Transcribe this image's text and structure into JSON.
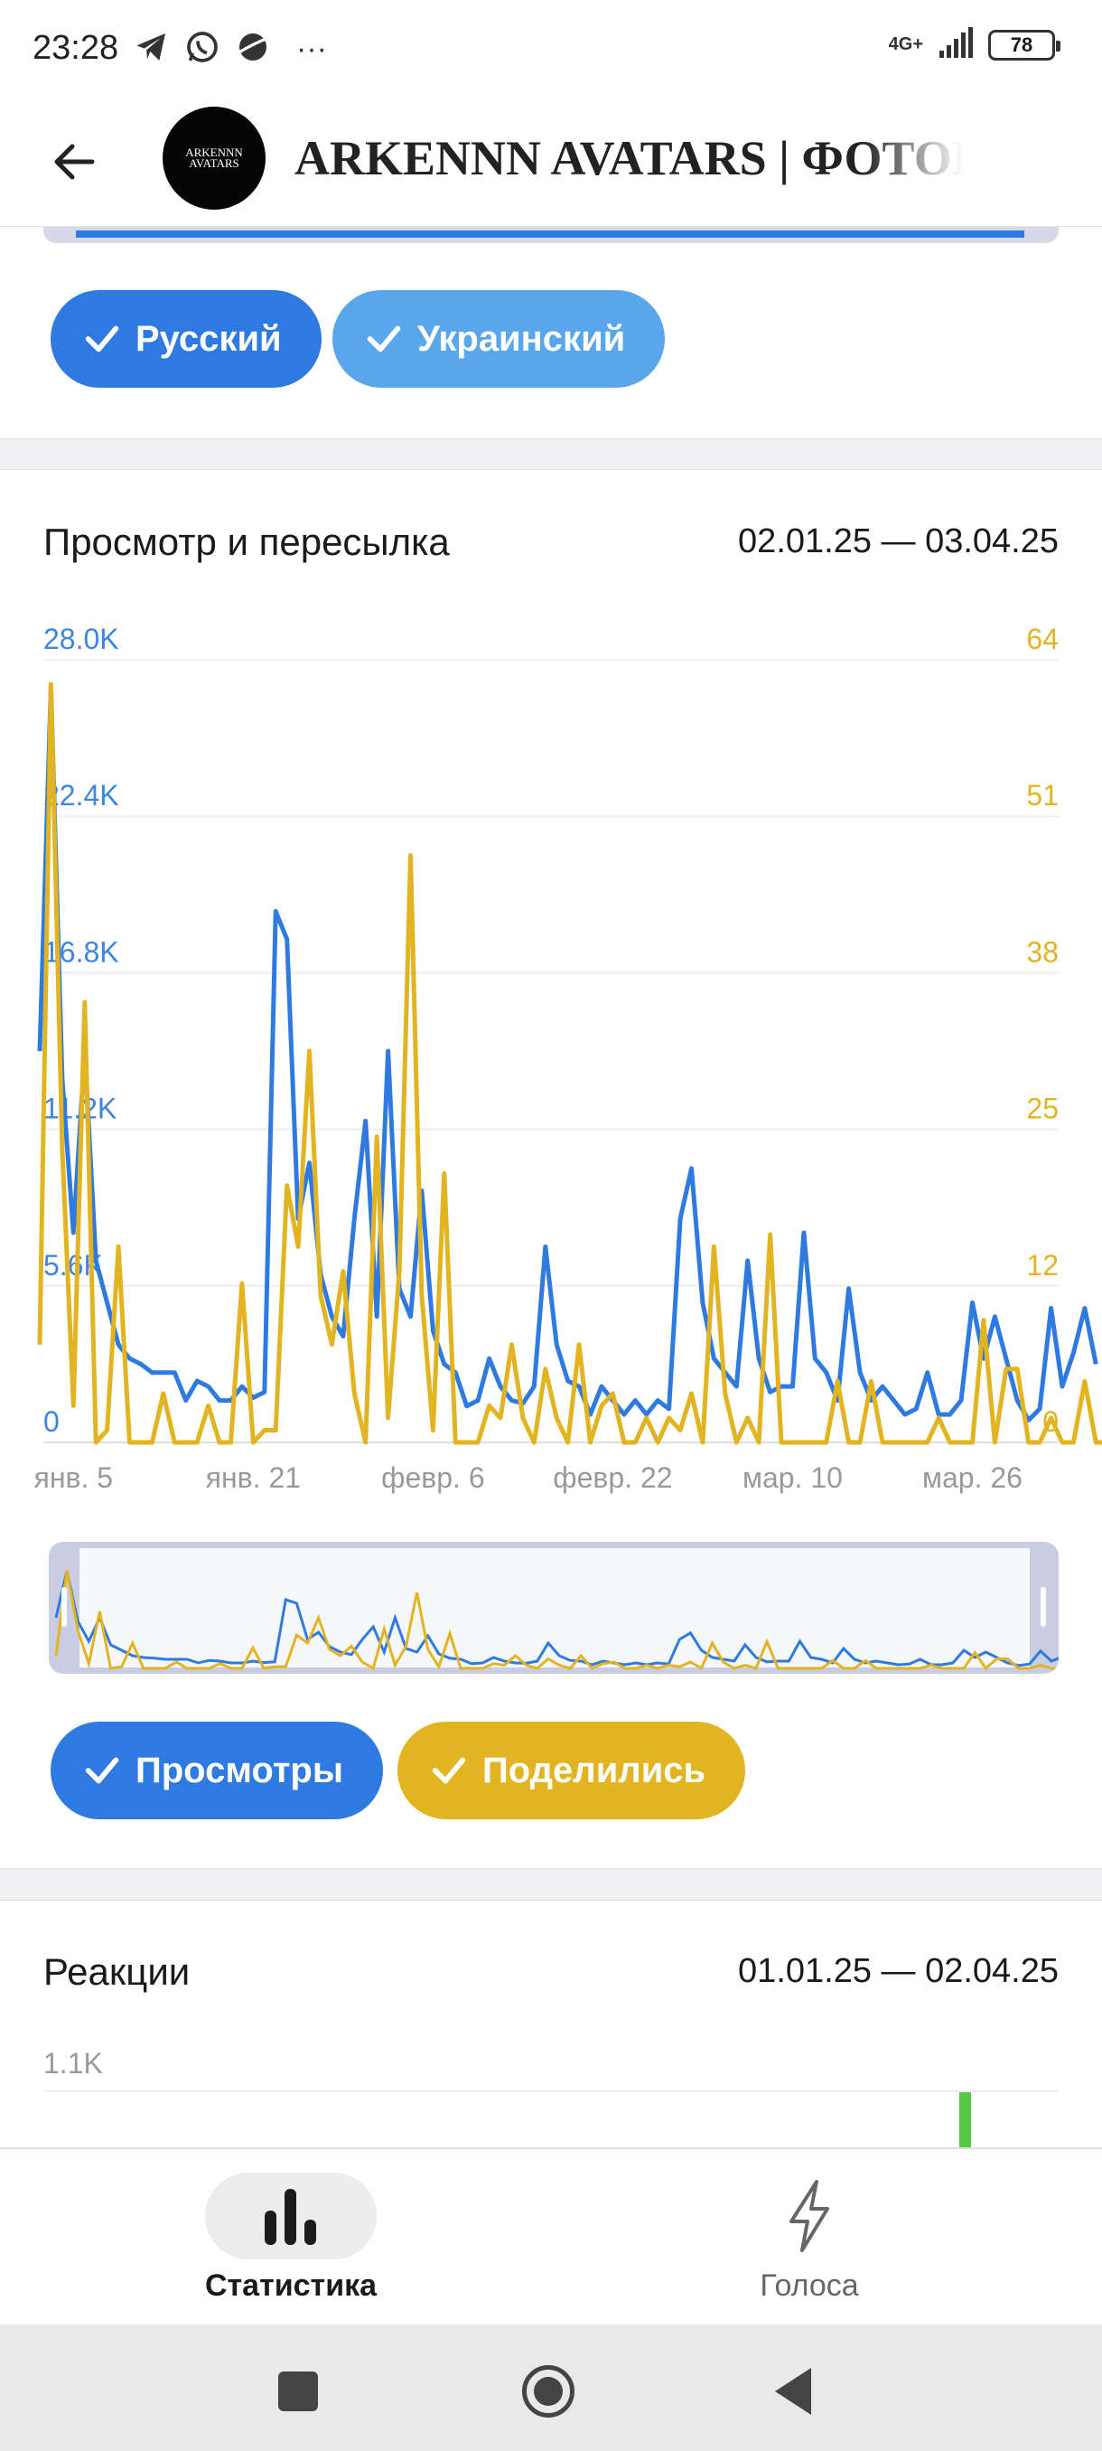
{
  "status_bar": {
    "time": "23:28",
    "network": "4G+",
    "battery": "78",
    "overflow": "···"
  },
  "header": {
    "title": "ARKENNN AVATARS | ФОТОВ",
    "avatar_text_line1": "ARKENNN",
    "avatar_text_line2": "AVATARS"
  },
  "languages": {
    "chips": [
      {
        "label": "Русский",
        "color": "#2f7ae0"
      },
      {
        "label": "Украинский",
        "color": "#5aa6ec"
      }
    ]
  },
  "views_card": {
    "title": "Просмотр и пересылка",
    "range": "02.01.25 — 03.04.25",
    "toggles": [
      {
        "label": "Просмотры",
        "color": "#2f7ae0"
      },
      {
        "label": "Поделились",
        "color": "#e3b421"
      }
    ]
  },
  "reactions_card": {
    "title": "Реакции",
    "range": "01.01.25 — 02.04.25",
    "tick_top": "1.1K"
  },
  "bottom_nav": {
    "stats_label": "Статистика",
    "votes_label": "Голоса"
  },
  "chart_data": {
    "type": "line",
    "left_axis_ticks": [
      "0",
      "5.6K",
      "11.2K",
      "16.8K",
      "22.4K",
      "28.0K"
    ],
    "right_axis_ticks": [
      "0",
      "12",
      "25",
      "38",
      "51",
      "64"
    ],
    "x_tick_labels": [
      "янв. 5",
      "янв. 21",
      "февр. 6",
      "февр. 22",
      "мар. 10",
      "мар. 26"
    ],
    "x_tick_days": [
      3,
      19,
      35,
      51,
      67,
      83
    ],
    "ylim_left": [
      0,
      28000
    ],
    "ylim_right": [
      0,
      64
    ],
    "x_days": 92,
    "grid": true,
    "series": [
      {
        "name": "Просмотры",
        "axis": "left",
        "color": "#2f7ae0",
        "values": [
          14000,
          27000,
          13000,
          7500,
          14000,
          6500,
          5000,
          3500,
          3000,
          2800,
          2500,
          2500,
          2500,
          1500,
          2200,
          2000,
          1500,
          1500,
          2000,
          1600,
          1800,
          19000,
          18000,
          8000,
          10000,
          6000,
          4500,
          3800,
          8000,
          11500,
          4500,
          14000,
          5500,
          4500,
          9000,
          4000,
          2800,
          2500,
          1300,
          1500,
          3000,
          2000,
          1500,
          1400,
          2000,
          7000,
          3500,
          2200,
          2000,
          1000,
          2000,
          1500,
          1000,
          1500,
          1000,
          1500,
          1200,
          8000,
          9800,
          5000,
          3000,
          2500,
          2000,
          6500,
          3000,
          1800,
          2000,
          2000,
          7500,
          3000,
          2500,
          1500,
          5500,
          2500,
          1500,
          2000,
          1500,
          1000,
          1200,
          2500,
          1000,
          1000,
          1500,
          5000,
          3000,
          4500,
          3000,
          1500,
          800,
          1200,
          4800,
          2000,
          3200,
          4800,
          2800
        ]
      },
      {
        "name": "Поделились",
        "axis": "right",
        "color": "#e3b421",
        "values": [
          8,
          62,
          24,
          3,
          36,
          0,
          1,
          16,
          0,
          0,
          0,
          4,
          0,
          0,
          0,
          3,
          0,
          0,
          13,
          0,
          1,
          1,
          21,
          16,
          32,
          12,
          8,
          14,
          4,
          0,
          25,
          2,
          14,
          48,
          12,
          1,
          22,
          0,
          0,
          0,
          3,
          2,
          8,
          2,
          0,
          6,
          2,
          0,
          8,
          0,
          3,
          4,
          0,
          0,
          2,
          0,
          2,
          1,
          4,
          0,
          16,
          4,
          0,
          2,
          0,
          17,
          0,
          0,
          0,
          0,
          0,
          5,
          0,
          0,
          5,
          0,
          0,
          0,
          0,
          0,
          2,
          0,
          0,
          0,
          10,
          0,
          6,
          6,
          0,
          0,
          2,
          0,
          0,
          5,
          0,
          0
        ]
      }
    ]
  }
}
